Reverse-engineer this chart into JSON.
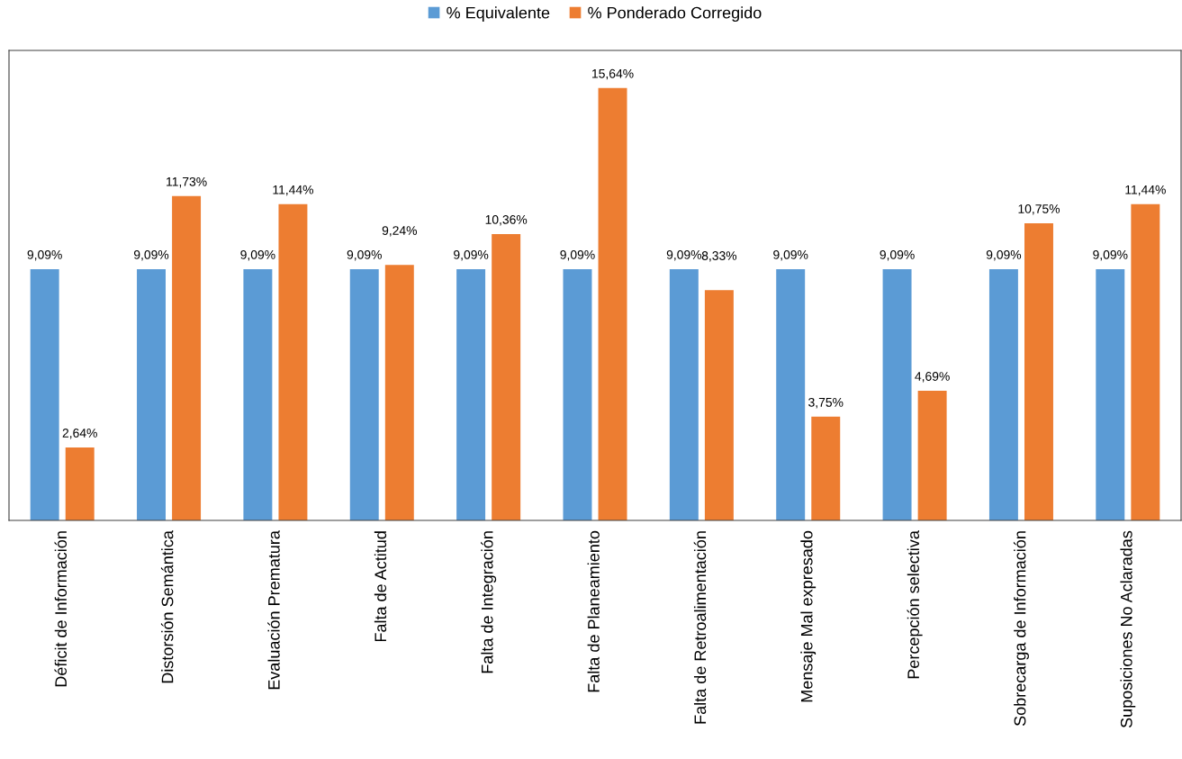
{
  "chart_data": {
    "type": "bar",
    "categories": [
      "Déficit de Información",
      "Distorsión Semántica",
      "Evaluación Prematura",
      "Falta de Actitud",
      "Falta de Integración",
      "Falta de Planeamiento",
      "Falta de Retroalimentación",
      "Mensaje Mal expresado",
      "Percepción selectiva",
      "Sobrecarga de Información",
      "Suposiciones No Aclaradas"
    ],
    "series": [
      {
        "name": "% Equivalente",
        "color": "#5b9bd5",
        "values": [
          9.09,
          9.09,
          9.09,
          9.09,
          9.09,
          9.09,
          9.09,
          9.09,
          9.09,
          9.09,
          9.09
        ],
        "value_labels": [
          "9,09%",
          "9,09%",
          "9,09%",
          "9,09%",
          "9,09%",
          "9,09%",
          "9,09%",
          "9,09%",
          "9,09%",
          "9,09%",
          "9,09%"
        ]
      },
      {
        "name": "% Ponderado Corregido",
        "color": "#ed7d31",
        "values": [
          2.64,
          11.73,
          11.44,
          9.24,
          10.36,
          15.64,
          8.33,
          3.75,
          4.69,
          10.75,
          11.44
        ],
        "value_labels": [
          "2,64%",
          "11,73%",
          "11,44%",
          "9,24%",
          "10,36%",
          "15,64%",
          "8,33%",
          "3,75%",
          "4,69%",
          "10,75%",
          "11,44%"
        ]
      }
    ],
    "ylim": [
      0,
      17
    ],
    "legend": "top",
    "grid": false,
    "tick_labels": "x"
  }
}
